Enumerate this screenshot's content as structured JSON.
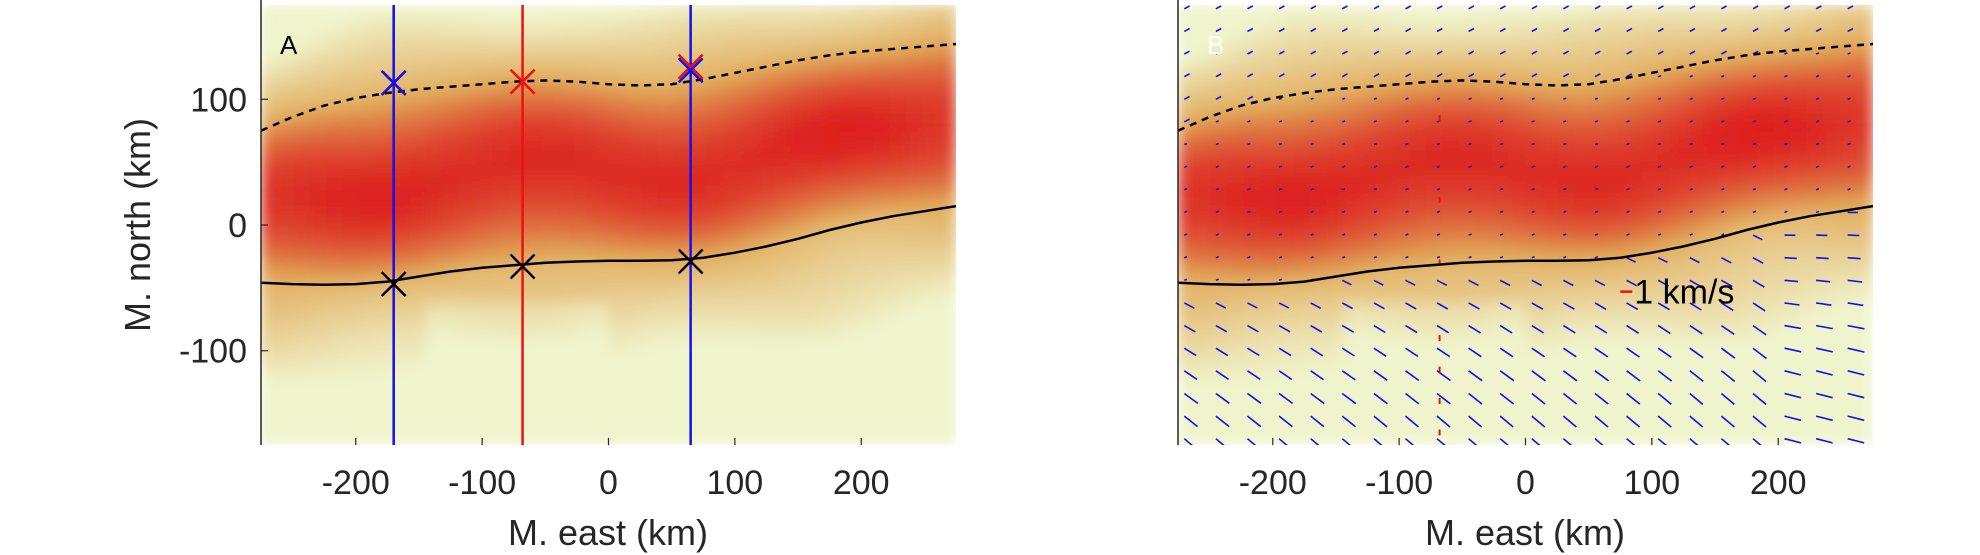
{
  "chart_data": [
    {
      "type": "heatmap",
      "panel_label": "A",
      "xlabel": "M. east (km)",
      "ylabel": "M. north (km)",
      "xlim": [
        -275,
        275
      ],
      "ylim": [
        -175,
        175
      ],
      "xticks": [
        -200,
        -100,
        0,
        100,
        200
      ],
      "yticks": [
        100,
        0,
        -100
      ],
      "xtick_labels": [
        "-200",
        "-100",
        "0",
        "100",
        "200"
      ],
      "ytick_labels": [
        "100",
        "0",
        "-100"
      ],
      "colors": {
        "low": "#f0f4cc",
        "mid": "#e0a857",
        "high": "#dd1f1f",
        "blue_line": "#1010ee",
        "red_line": "#ee1010",
        "boundary": "#000000"
      },
      "poleward_boundary": {
        "style": "dashed",
        "x": [
          -275,
          -250,
          -225,
          -200,
          -175,
          -150,
          -125,
          -100,
          -75,
          -50,
          -25,
          0,
          25,
          50,
          75,
          100,
          125,
          150,
          175,
          200,
          225,
          250,
          275
        ],
        "y": [
          75,
          86,
          95,
          101,
          105,
          108,
          110,
          112,
          114,
          115,
          114,
          112,
          111,
          112,
          116,
          121,
          126,
          131,
          135,
          138,
          140,
          142,
          144
        ]
      },
      "equatorward_boundary": {
        "style": "solid",
        "x": [
          -275,
          -250,
          -225,
          -200,
          -175,
          -150,
          -125,
          -100,
          -75,
          -50,
          -25,
          0,
          25,
          50,
          75,
          100,
          125,
          150,
          175,
          200,
          225,
          250,
          275
        ],
        "y": [
          -46,
          -47,
          -47.5,
          -47,
          -45,
          -41,
          -37,
          -34,
          -32,
          -30,
          -29,
          -28.5,
          -28.5,
          -28,
          -26,
          -22,
          -17,
          -11,
          -4,
          2,
          7,
          11,
          15
        ]
      },
      "vertical_lines": [
        {
          "x": -170,
          "color": "blue"
        },
        {
          "x": -68,
          "color": "red"
        },
        {
          "x": 65,
          "color": "blue"
        }
      ],
      "markers": [
        {
          "x": -170,
          "y": 113,
          "color": "red"
        },
        {
          "x": -170,
          "y": 113,
          "color": "blue"
        },
        {
          "x": -68,
          "y": 114,
          "color": "red"
        },
        {
          "x": 65,
          "y": 126,
          "color": "red"
        },
        {
          "x": 65,
          "y": 123,
          "color": "blue"
        },
        {
          "x": -170,
          "y": -47,
          "color": "black"
        },
        {
          "x": -68,
          "y": -33,
          "color": "black"
        },
        {
          "x": 65,
          "y": -29,
          "color": "black"
        }
      ]
    },
    {
      "type": "heatmap",
      "panel_label": "B",
      "xlabel": "M. east (km)",
      "ylabel": "",
      "xlim": [
        -275,
        275
      ],
      "ylim": [
        -175,
        175
      ],
      "xticks": [
        -200,
        -100,
        0,
        100,
        200
      ],
      "xtick_labels": [
        "-200",
        "-100",
        "0",
        "100",
        "200"
      ],
      "colors": {
        "low": "#f0f4cc",
        "mid": "#e0a857",
        "high": "#dd1f1f",
        "vector": "#1010ee",
        "vector_highlight": "#ee1010",
        "boundary": "#000000"
      },
      "scale_vector": {
        "label": "1 km/s",
        "x": 75,
        "y": -53
      },
      "vector_field": {
        "x_step": 25,
        "y_step": 18
      },
      "poleward_boundary": {
        "style": "dashed",
        "x": [
          -275,
          -250,
          -225,
          -200,
          -175,
          -150,
          -125,
          -100,
          -75,
          -50,
          -25,
          0,
          25,
          50,
          75,
          100,
          125,
          150,
          175,
          200,
          225,
          250,
          275
        ],
        "y": [
          75,
          86,
          95,
          101,
          105,
          108,
          110,
          112,
          114,
          115,
          114,
          112,
          111,
          112,
          116,
          121,
          126,
          131,
          135,
          138,
          140,
          142,
          144
        ]
      },
      "equatorward_boundary": {
        "style": "solid",
        "x": [
          -275,
          -250,
          -225,
          -200,
          -175,
          -150,
          -125,
          -100,
          -75,
          -50,
          -25,
          0,
          25,
          50,
          75,
          100,
          125,
          150,
          175,
          200,
          225,
          250,
          275
        ],
        "y": [
          -46,
          -47,
          -47.5,
          -47,
          -45,
          -41,
          -37,
          -34,
          -32,
          -30,
          -29,
          -28.5,
          -28.5,
          -28,
          -26,
          -22,
          -17,
          -11,
          -4,
          2,
          7,
          11,
          15
        ]
      }
    }
  ]
}
